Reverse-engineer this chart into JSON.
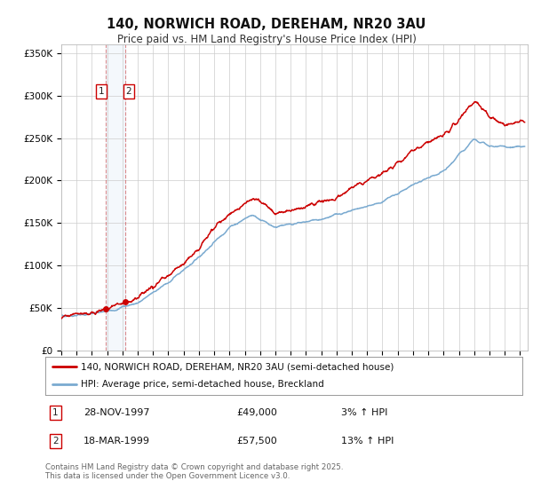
{
  "title": "140, NORWICH ROAD, DEREHAM, NR20 3AU",
  "subtitle": "Price paid vs. HM Land Registry's House Price Index (HPI)",
  "ylim": [
    0,
    360000
  ],
  "yticks": [
    0,
    50000,
    100000,
    150000,
    200000,
    250000,
    300000,
    350000
  ],
  "ytick_labels": [
    "£0",
    "£50K",
    "£100K",
    "£150K",
    "£200K",
    "£250K",
    "£300K",
    "£350K"
  ],
  "line1_color": "#cc0000",
  "line2_color": "#7aaad0",
  "purchase1_date": 1997.91,
  "purchase1_price": 49000,
  "purchase2_date": 1999.21,
  "purchase2_price": 57500,
  "legend_line1": "140, NORWICH ROAD, DEREHAM, NR20 3AU (semi-detached house)",
  "legend_line2": "HPI: Average price, semi-detached house, Breckland",
  "annotation1_date": "28-NOV-1997",
  "annotation1_price": "£49,000",
  "annotation1_hpi": "3% ↑ HPI",
  "annotation2_date": "18-MAR-1999",
  "annotation2_price": "£57,500",
  "annotation2_hpi": "13% ↑ HPI",
  "footer": "Contains HM Land Registry data © Crown copyright and database right 2025.\nThis data is licensed under the Open Government Licence v3.0.",
  "bg_color": "#ffffff",
  "grid_color": "#cccccc"
}
